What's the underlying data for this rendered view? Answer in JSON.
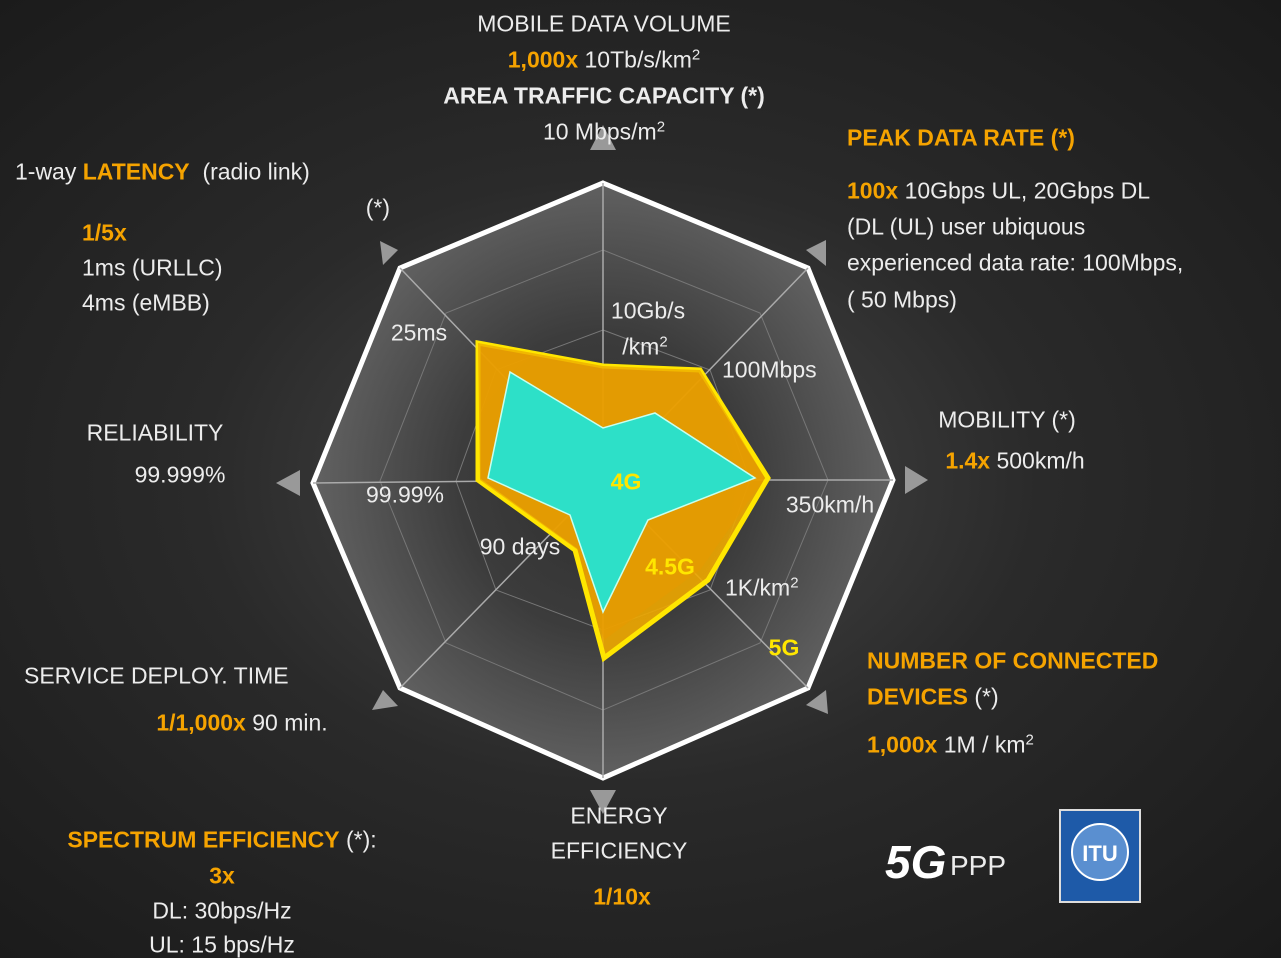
{
  "data_volume": {
    "title": "MOBILE DATA VOLUME",
    "factor": "1,000x",
    "value": "10Tb/s/km",
    "value_sup": "2",
    "subtitle": "AREA TRAFFIC CAPACITY (*)",
    "subvalue": "10 Mbps/m",
    "subvalue_sup": "2"
  },
  "peak_rate": {
    "title": "PEAK DATA RATE (*)",
    "factor": "100x",
    "value": "10Gbps UL, 20Gbps DL",
    "lines": [
      "(DL (UL) user ubiquous",
      "experienced data rate: 100Mbps,",
      "( 50 Mbps)"
    ]
  },
  "mobility": {
    "title": "MOBILITY (*)",
    "factor": "1.4x",
    "value": "500km/h"
  },
  "connected_devices": {
    "title_1": "NUMBER OF CONNECTED",
    "title_2": "DEVICES",
    "note": "(*)",
    "factor": "1,000x",
    "value": "1M / km",
    "value_sup": "2"
  },
  "energy": {
    "title_1": "ENERGY",
    "title_2": "EFFICIENCY",
    "factor": "1/10x"
  },
  "service_deploy": {
    "title": "SERVICE DEPLOY. TIME",
    "factor": "1/1,000x",
    "value": "90 min."
  },
  "reliability": {
    "title": "RELIABILITY",
    "value": "99.999%"
  },
  "latency": {
    "prefix": "1-way",
    "title": "LATENCY",
    "suffix": "(radio link)",
    "note": "(*)",
    "factor": "1/5x",
    "lines": [
      "1ms (URLLC)",
      "4ms (eMBB)"
    ]
  },
  "spectrum": {
    "title": "SPECTRUM EFFICIENCY",
    "note": "(*):",
    "factor": "3x",
    "lines": [
      "DL: 30bps/Hz",
      "UL: 15 bps/Hz"
    ]
  },
  "inner_labels": {
    "volume_1": "10Gb/s",
    "volume_2": "/km",
    "volume_sup": "2",
    "peak": "100Mbps",
    "mobility": "350km/h",
    "devices": "1K/km",
    "devices_sup": "2",
    "service": "90 days",
    "reliability": "99.99%",
    "latency": "25ms"
  },
  "series_labels": [
    "4G",
    "4.5G",
    "5G"
  ],
  "logos": {
    "ppp": "PPP",
    "itu": "ITU"
  }
}
